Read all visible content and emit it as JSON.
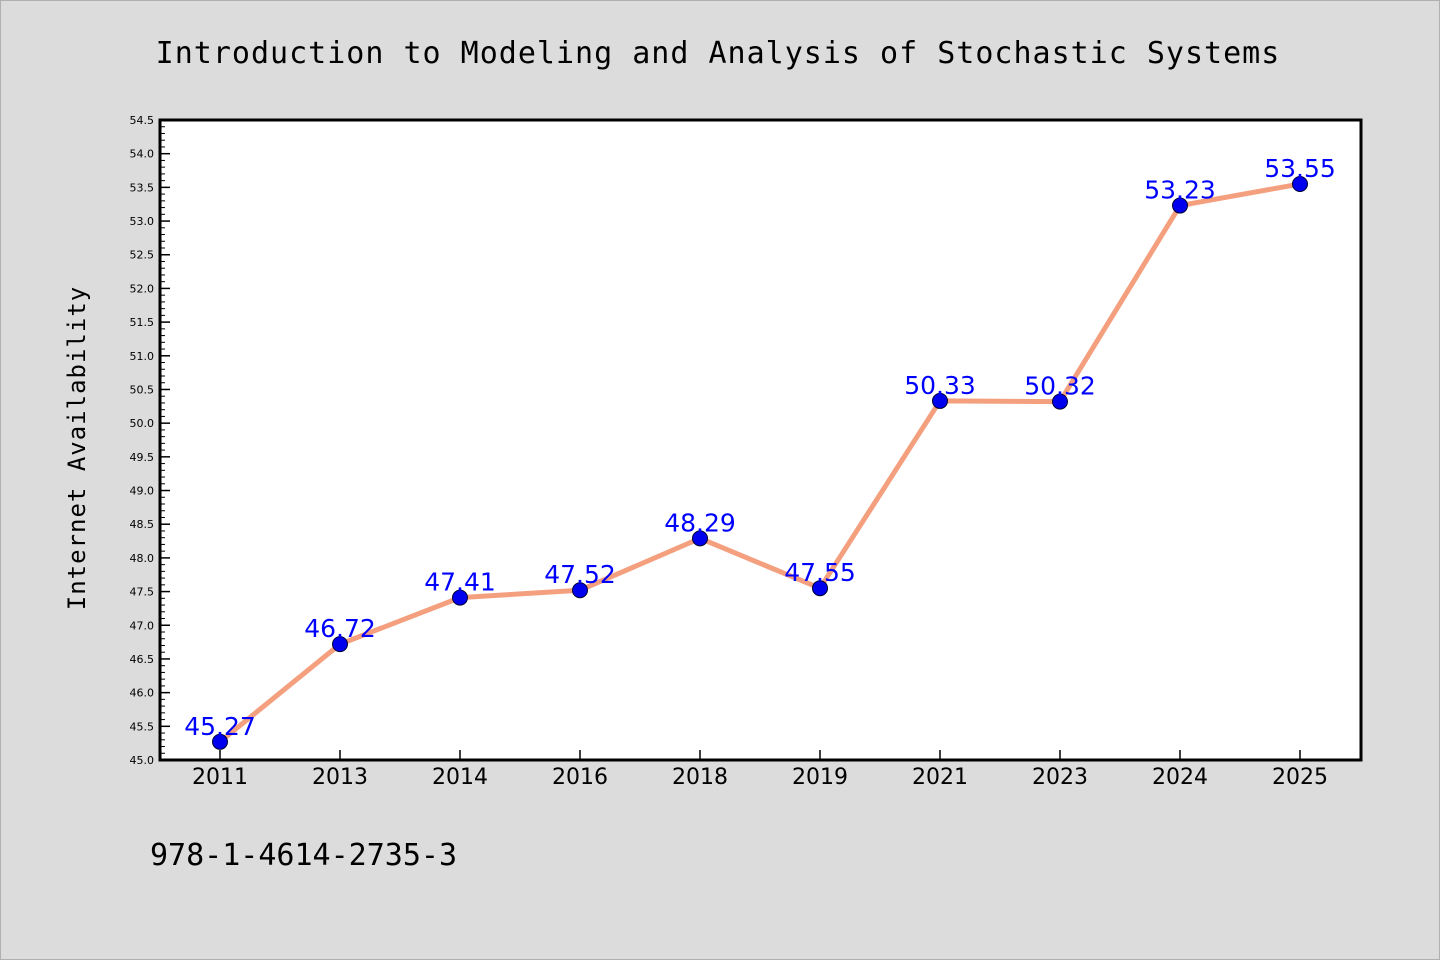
{
  "title": "Introduction to Modeling and Analysis of Stochastic Systems",
  "footer": "978-1-4614-2735-3",
  "colors": {
    "background": "#dcdcdc",
    "plot_background": "#ffffff",
    "line": "#f4a07f",
    "marker": "#0000ee",
    "data_label": "#0000ff"
  },
  "chart_data": {
    "type": "line",
    "title": "Introduction to Modeling and Analysis of Stochastic Systems",
    "xlabel": "",
    "ylabel": "Internet Availability",
    "categories": [
      "2011",
      "2013",
      "2014",
      "2016",
      "2018",
      "2019",
      "2021",
      "2023",
      "2024",
      "2025"
    ],
    "series": [
      {
        "values": [
          45.27,
          46.72,
          47.41,
          47.52,
          48.29,
          47.55,
          50.33,
          50.32,
          53.23,
          53.55
        ],
        "labels": [
          "45.27",
          "46.72",
          "47.41",
          "47.52",
          "48.29",
          "47.55",
          "50.33",
          "50.32",
          "53.23",
          "53.55"
        ]
      }
    ],
    "ylim": [
      45.0,
      54.5
    ],
    "yticks": [
      "45.0",
      "45.5",
      "46.0",
      "46.5",
      "47.0",
      "47.5",
      "48.0",
      "48.5",
      "49.0",
      "49.5",
      "50.0",
      "50.5",
      "51.0",
      "51.5",
      "52.0",
      "52.5",
      "53.0",
      "53.5",
      "54.0",
      "54.5"
    ],
    "grid": false,
    "legend": "none"
  }
}
